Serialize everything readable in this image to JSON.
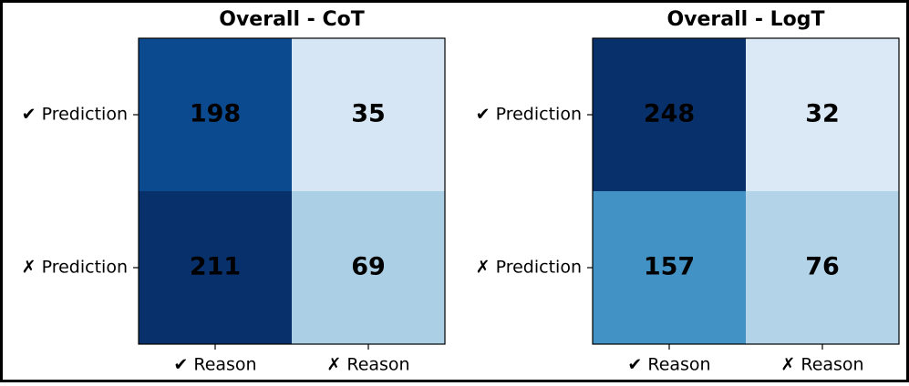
{
  "chart_data": [
    {
      "type": "heatmap",
      "title": "Overall - CoT",
      "x_categories": [
        "✔ Reason",
        "✗ Reason"
      ],
      "y_categories": [
        "✔ Prediction",
        "✗ Prediction"
      ],
      "values": [
        [
          198,
          35
        ],
        [
          211,
          69
        ]
      ],
      "colors": [
        [
          "#0b4a8f",
          "#d6e6f4"
        ],
        [
          "#08306b",
          "#abd0e6"
        ]
      ]
    },
    {
      "type": "heatmap",
      "title": "Overall - LogT",
      "x_categories": [
        "✔ Reason",
        "✗ Reason"
      ],
      "y_categories": [
        "✔ Prediction",
        "✗ Prediction"
      ],
      "values": [
        [
          248,
          32
        ],
        [
          157,
          76
        ]
      ],
      "colors": [
        [
          "#08306b",
          "#dbe9f6"
        ],
        [
          "#4292c6",
          "#b3d3e8"
        ]
      ]
    }
  ]
}
